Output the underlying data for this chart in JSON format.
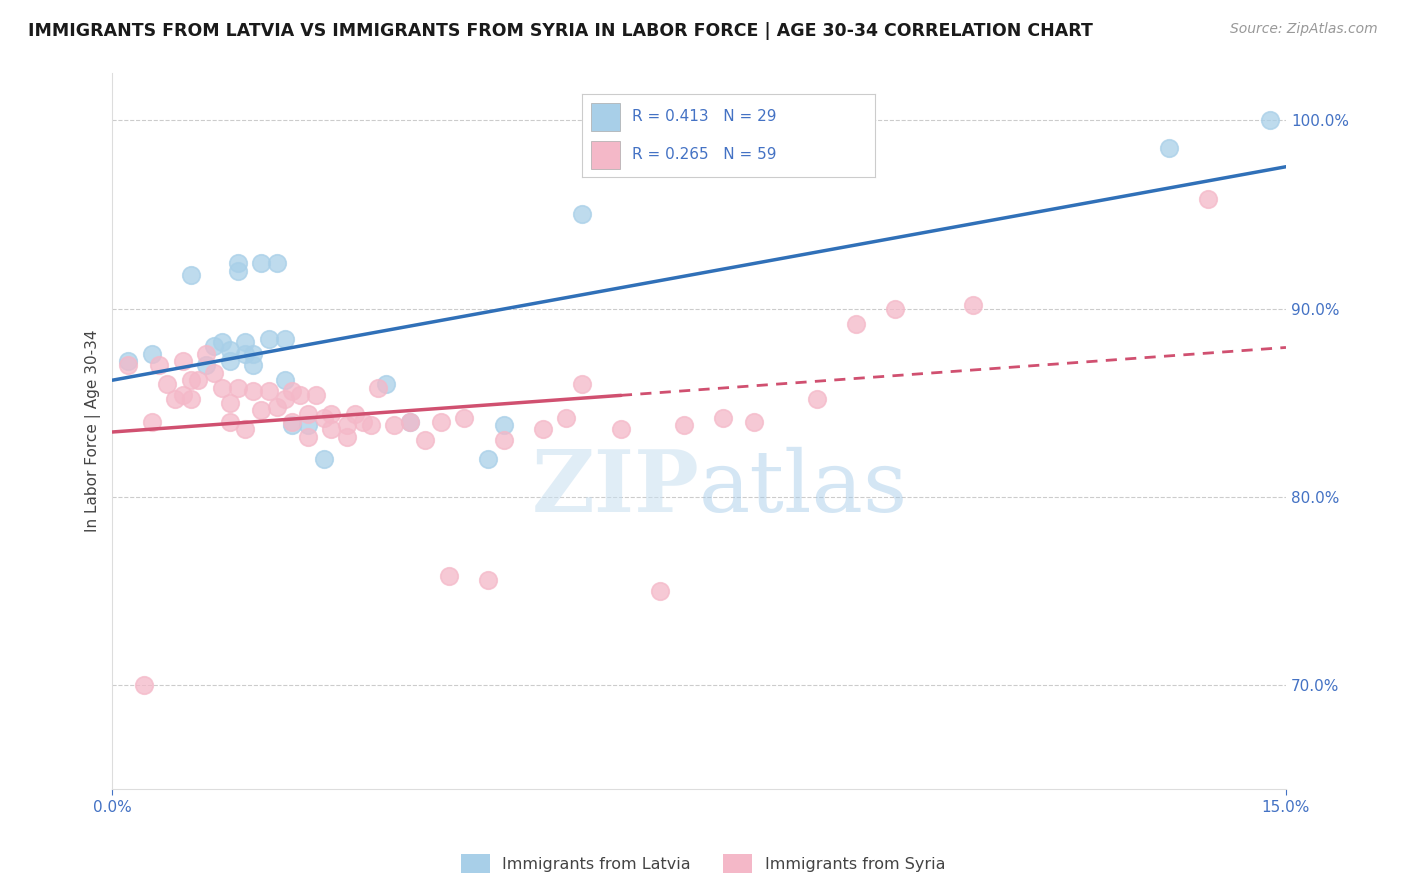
{
  "title": "IMMIGRANTS FROM LATVIA VS IMMIGRANTS FROM SYRIA IN LABOR FORCE | AGE 30-34 CORRELATION CHART",
  "source": "Source: ZipAtlas.com",
  "ylabel": "In Labor Force | Age 30-34",
  "xlim": [
    0.0,
    0.15
  ],
  "ylim": [
    0.645,
    1.025
  ],
  "yticks": [
    0.7,
    0.8,
    0.9,
    1.0
  ],
  "legend_r_latvia": "R = 0.413",
  "legend_n_latvia": "N = 29",
  "legend_r_syria": "R = 0.265",
  "legend_n_syria": "N = 59",
  "color_latvia": "#a8cfe8",
  "color_syria": "#f4b8c8",
  "color_trendline_latvia": "#3070b8",
  "color_trendline_syria": "#d05070",
  "watermark_zip": "ZIP",
  "watermark_atlas": "atlas",
  "background_color": "#ffffff",
  "grid_color": "#cccccc",
  "tick_color": "#4472c4",
  "latvia_x": [
    0.002,
    0.005,
    0.01,
    0.012,
    0.013,
    0.014,
    0.015,
    0.015,
    0.016,
    0.016,
    0.017,
    0.017,
    0.018,
    0.018,
    0.019,
    0.02,
    0.021,
    0.022,
    0.022,
    0.023,
    0.025,
    0.027,
    0.035,
    0.038,
    0.048,
    0.05,
    0.06,
    0.135,
    0.148
  ],
  "latvia_y": [
    0.872,
    0.876,
    0.918,
    0.87,
    0.88,
    0.882,
    0.872,
    0.878,
    0.924,
    0.92,
    0.876,
    0.882,
    0.87,
    0.876,
    0.924,
    0.884,
    0.924,
    0.884,
    0.862,
    0.838,
    0.838,
    0.82,
    0.86,
    0.84,
    0.82,
    0.838,
    0.95,
    0.985,
    1.0
  ],
  "syria_x": [
    0.002,
    0.004,
    0.005,
    0.006,
    0.007,
    0.008,
    0.009,
    0.009,
    0.01,
    0.01,
    0.011,
    0.012,
    0.013,
    0.014,
    0.015,
    0.015,
    0.016,
    0.017,
    0.018,
    0.019,
    0.02,
    0.021,
    0.022,
    0.023,
    0.023,
    0.024,
    0.025,
    0.025,
    0.026,
    0.027,
    0.028,
    0.028,
    0.03,
    0.03,
    0.031,
    0.032,
    0.033,
    0.034,
    0.036,
    0.038,
    0.04,
    0.042,
    0.043,
    0.045,
    0.048,
    0.05,
    0.055,
    0.058,
    0.06,
    0.065,
    0.07,
    0.073,
    0.078,
    0.082,
    0.09,
    0.095,
    0.1,
    0.11,
    0.14
  ],
  "syria_y": [
    0.87,
    0.7,
    0.84,
    0.87,
    0.86,
    0.852,
    0.872,
    0.854,
    0.862,
    0.852,
    0.862,
    0.876,
    0.866,
    0.858,
    0.85,
    0.84,
    0.858,
    0.836,
    0.856,
    0.846,
    0.856,
    0.848,
    0.852,
    0.856,
    0.84,
    0.854,
    0.844,
    0.832,
    0.854,
    0.842,
    0.836,
    0.844,
    0.838,
    0.832,
    0.844,
    0.84,
    0.838,
    0.858,
    0.838,
    0.84,
    0.83,
    0.84,
    0.758,
    0.842,
    0.756,
    0.83,
    0.836,
    0.842,
    0.86,
    0.836,
    0.75,
    0.838,
    0.842,
    0.84,
    0.852,
    0.892,
    0.9,
    0.902,
    0.958
  ]
}
